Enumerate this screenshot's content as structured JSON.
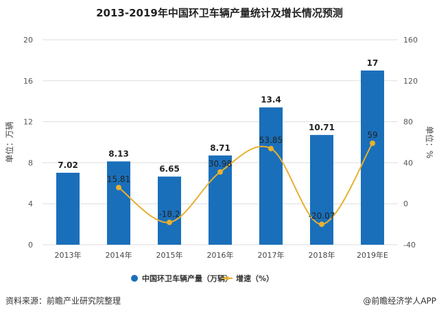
{
  "chart_data": {
    "type": "bar+line",
    "title": "2013-2019年中国环卫车辆产量统计及增长情况预测",
    "categories": [
      "2013年",
      "2014年",
      "2015年",
      "2016年",
      "2017年",
      "2018年",
      "2019年E"
    ],
    "series": [
      {
        "name": "中国环卫车辆产量（万辆）",
        "type": "bar",
        "axis": "left",
        "color": "#1a6fba",
        "values": [
          7.02,
          8.13,
          6.65,
          8.71,
          13.4,
          10.71,
          17
        ]
      },
      {
        "name": "增速（%）",
        "type": "line",
        "axis": "right",
        "color": "#e8b030",
        "values": [
          null,
          15.81,
          -18.2,
          30.98,
          53.85,
          -20.07,
          59
        ]
      }
    ],
    "ylabel": "单位：万辆",
    "y2label": "单位：%",
    "ylim": [
      0,
      20
    ],
    "yticks": [
      0,
      4,
      8,
      12,
      16,
      20
    ],
    "y2lim": [
      -40,
      160
    ],
    "y2ticks": [
      -40,
      0,
      40,
      80,
      120,
      160
    ],
    "grid": true,
    "legend": "bottom"
  },
  "footer": {
    "source": "资料来源：前瞻产业研究院整理",
    "credit": "@前瞻经济学人APP"
  }
}
